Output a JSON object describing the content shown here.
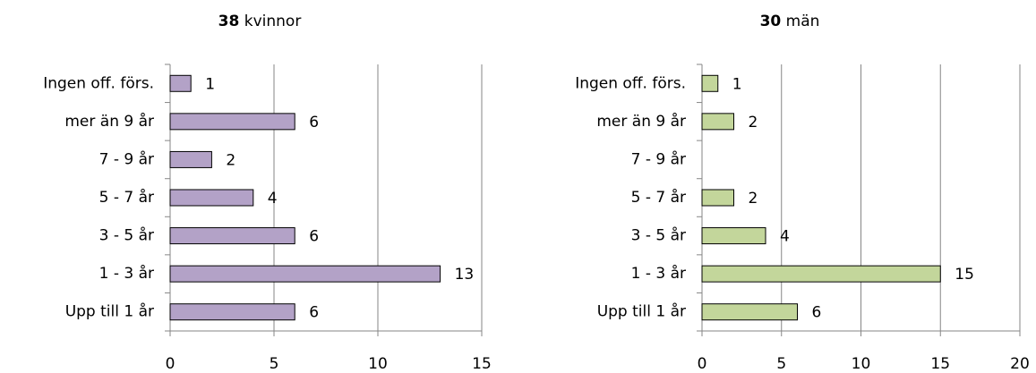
{
  "chart_data": [
    {
      "type": "bar",
      "title_count": 38,
      "title": "kvinnor",
      "categories": [
        "Ingen off. förs.",
        "mer än 9 år",
        "7 - 9 år",
        "5 - 7 år",
        "3 - 5 år",
        "1 - 3 år",
        "Upp till 1 år"
      ],
      "values": [
        1,
        6,
        2,
        4,
        6,
        13,
        6
      ],
      "color": "#b3a2c7",
      "xlim": [
        0,
        15
      ],
      "xticks": [
        0,
        5,
        10,
        15
      ],
      "grid": true
    },
    {
      "type": "bar",
      "title_count": 30,
      "title": "män",
      "categories": [
        "Ingen off. förs.",
        "mer än 9 år",
        "7 - 9 år",
        "5 - 7 år",
        "3 - 5 år",
        "1 - 3 år",
        "Upp till 1 år"
      ],
      "values": [
        1,
        2,
        null,
        2,
        4,
        15,
        6
      ],
      "color": "#c3d69b",
      "xlim": [
        0,
        20
      ],
      "xticks": [
        0,
        5,
        10,
        15,
        20
      ],
      "grid": true
    }
  ]
}
